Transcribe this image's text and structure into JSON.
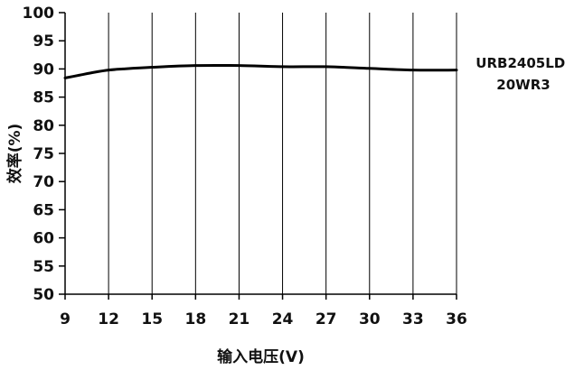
{
  "chart_data": {
    "type": "line",
    "title": "",
    "xlabel": "输入电压(V)",
    "ylabel": "效率(%)",
    "xlim": [
      9,
      36
    ],
    "ylim": [
      50,
      100
    ],
    "x_ticks": [
      9,
      12,
      15,
      18,
      21,
      24,
      27,
      30,
      33,
      36
    ],
    "y_ticks": [
      50,
      55,
      60,
      65,
      70,
      75,
      80,
      85,
      90,
      95,
      100
    ],
    "grid": "vertical",
    "legend_position": "right",
    "series": [
      {
        "name": "URB2405LD-20WR3",
        "legend_lines": [
          "URB2405LD-",
          "20WR3"
        ],
        "color": "#000000",
        "x": [
          9,
          10,
          11,
          12,
          13,
          15,
          18,
          21,
          24,
          27,
          30,
          33,
          36
        ],
        "y": [
          88.4,
          88.9,
          89.4,
          89.8,
          90.0,
          90.3,
          90.6,
          90.6,
          90.4,
          90.4,
          90.1,
          89.8,
          89.8
        ]
      }
    ]
  },
  "colors": {
    "axis": "#000000",
    "grid": "#000000",
    "text": "#111111"
  }
}
